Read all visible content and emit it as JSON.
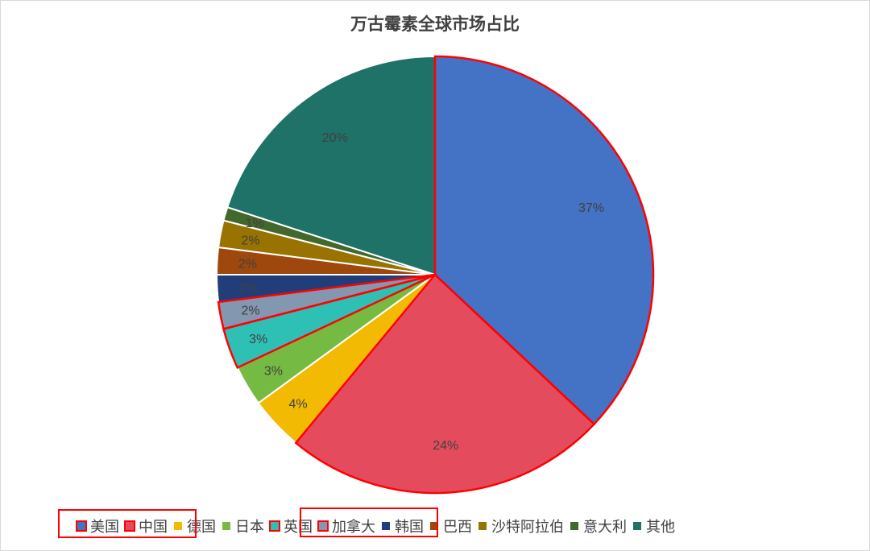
{
  "chart_data": {
    "type": "pie",
    "title": "万古霉素全球市场占比",
    "start": "top",
    "direction": "clockwise",
    "legend_position": "bottom",
    "slices": [
      {
        "name": "美国",
        "value": 37,
        "label": "37%",
        "color": "#4472C4",
        "highlighted": true
      },
      {
        "name": "中国",
        "value": 24,
        "label": "24%",
        "color": "#E44C5E",
        "highlighted": true
      },
      {
        "name": "德国",
        "value": 4,
        "label": "4%",
        "color": "#F2BA02",
        "highlighted": false
      },
      {
        "name": "日本",
        "value": 3,
        "label": "3%",
        "color": "#75BB43",
        "highlighted": false
      },
      {
        "name": "英国",
        "value": 3,
        "label": "3%",
        "color": "#2EC0B5",
        "highlighted": true
      },
      {
        "name": "加拿大",
        "value": 2,
        "label": "2%",
        "color": "#8497B0",
        "highlighted": true
      },
      {
        "name": "韩国",
        "value": 2,
        "label": "2%",
        "color": "#223E7A",
        "highlighted": false
      },
      {
        "name": "巴西",
        "value": 2,
        "label": "2%",
        "color": "#9E480E",
        "highlighted": false
      },
      {
        "name": "沙特阿拉伯",
        "value": 2,
        "label": "2%",
        "color": "#997300",
        "highlighted": false
      },
      {
        "name": "意大利",
        "value": 1,
        "label": "1%",
        "color": "#43682B",
        "highlighted": false
      },
      {
        "name": "其他",
        "value": 20,
        "label": "20%",
        "color": "#1E7268",
        "highlighted": false
      }
    ],
    "highlight_color": "#FF0000"
  }
}
